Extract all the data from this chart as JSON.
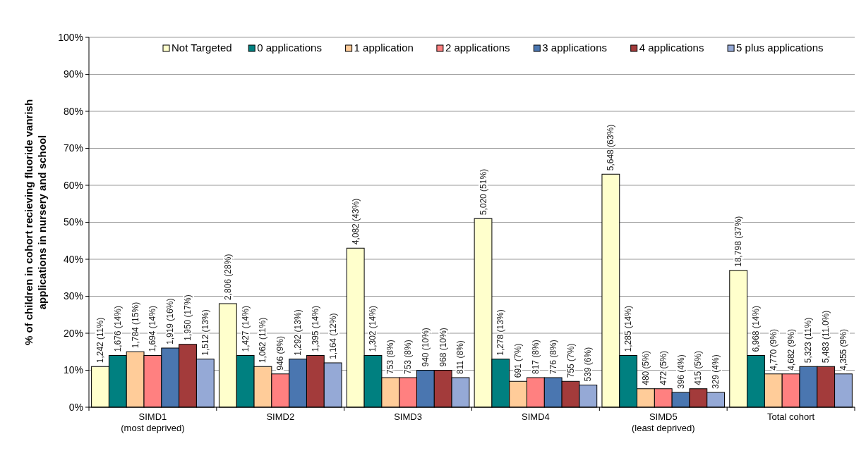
{
  "chart_data": {
    "type": "bar",
    "ylabel": "% of  children in cohort  recieving fluoride vanrish\napplications in nursery and school",
    "categories": [
      "SIMD1\n(most deprived)",
      "SIMD2",
      "SIMD3",
      "SIMD4",
      "SIMD5\n(least deprived)",
      "Total cohort"
    ],
    "series": [
      {
        "name": "Not Targeted",
        "color": "#ffffcc",
        "values": [
          11,
          28,
          43,
          51,
          63,
          37
        ],
        "value_labels": [
          "1,242 (11%)",
          "2,806 (28%)",
          "4,082 (43%)",
          "5,020 (51%)",
          "5,648 (63%)",
          "18,798 (37%)"
        ]
      },
      {
        "name": "0 applications",
        "color": "#008080",
        "values": [
          14,
          14,
          14,
          13,
          14,
          14
        ],
        "value_labels": [
          "1,676 (14%)",
          "1,427 (14%)",
          "1,302 (14%)",
          "1,278 (13%)",
          "1,285 (14%)",
          "6,968 (14%)"
        ]
      },
      {
        "name": "1 application",
        "color": "#ffcc99",
        "values": [
          15,
          11,
          8,
          7,
          5,
          9
        ],
        "value_labels": [
          "1,784 (15%)",
          "1,062 (11%)",
          "753 (8%)",
          "691 (7%)",
          "480 (5%)",
          "4,770 (9%)"
        ]
      },
      {
        "name": "2 applications",
        "color": "#ff8080",
        "values": [
          14,
          9,
          8,
          8,
          5,
          9
        ],
        "value_labels": [
          "1,694 (14%)",
          "946 (9%)",
          "753 (8%)",
          "817 (8%)",
          "472 (5%)",
          "4,682 (9%)"
        ]
      },
      {
        "name": "3 applications",
        "color": "#4a76b0",
        "values": [
          16,
          13,
          10,
          8,
          4,
          11
        ],
        "value_labels": [
          "1,919 (16%)",
          "1,292 (13%)",
          "940 (10%)",
          "776 (8%)",
          "396 (4%)",
          "5,323 (11%)"
        ]
      },
      {
        "name": "4 applications",
        "color": "#a33b3b",
        "values": [
          17,
          14,
          10,
          7,
          5,
          11
        ],
        "value_labels": [
          "1,950 (17%)",
          "1,395 (14%)",
          "968 (10%)",
          "755 (7%)",
          "415 (5%)",
          "5,483 (11.0%)"
        ]
      },
      {
        "name": "5 plus applications",
        "color": "#95a9d6",
        "values": [
          13,
          12,
          8,
          6,
          4,
          9
        ],
        "value_labels": [
          "1,512 (13%)",
          "1,164 (12%)",
          "811 (8%)",
          "539 (6%)",
          "329 (4%)",
          "4,355 (9%)"
        ]
      }
    ],
    "ylim": [
      0,
      100
    ],
    "yticks": [
      {
        "value": 0,
        "label": "0%"
      },
      {
        "value": 10,
        "label": "10%"
      },
      {
        "value": 20,
        "label": "20%"
      },
      {
        "value": 30,
        "label": "30%"
      },
      {
        "value": 40,
        "label": "40%"
      },
      {
        "value": 50,
        "label": "50%"
      },
      {
        "value": 60,
        "label": "60%"
      },
      {
        "value": 70,
        "label": "70%"
      },
      {
        "value": 80,
        "label": "80%"
      },
      {
        "value": 90,
        "label": "90%"
      },
      {
        "value": 100,
        "label": "100%"
      }
    ],
    "grid": "y",
    "legend": "top right"
  }
}
